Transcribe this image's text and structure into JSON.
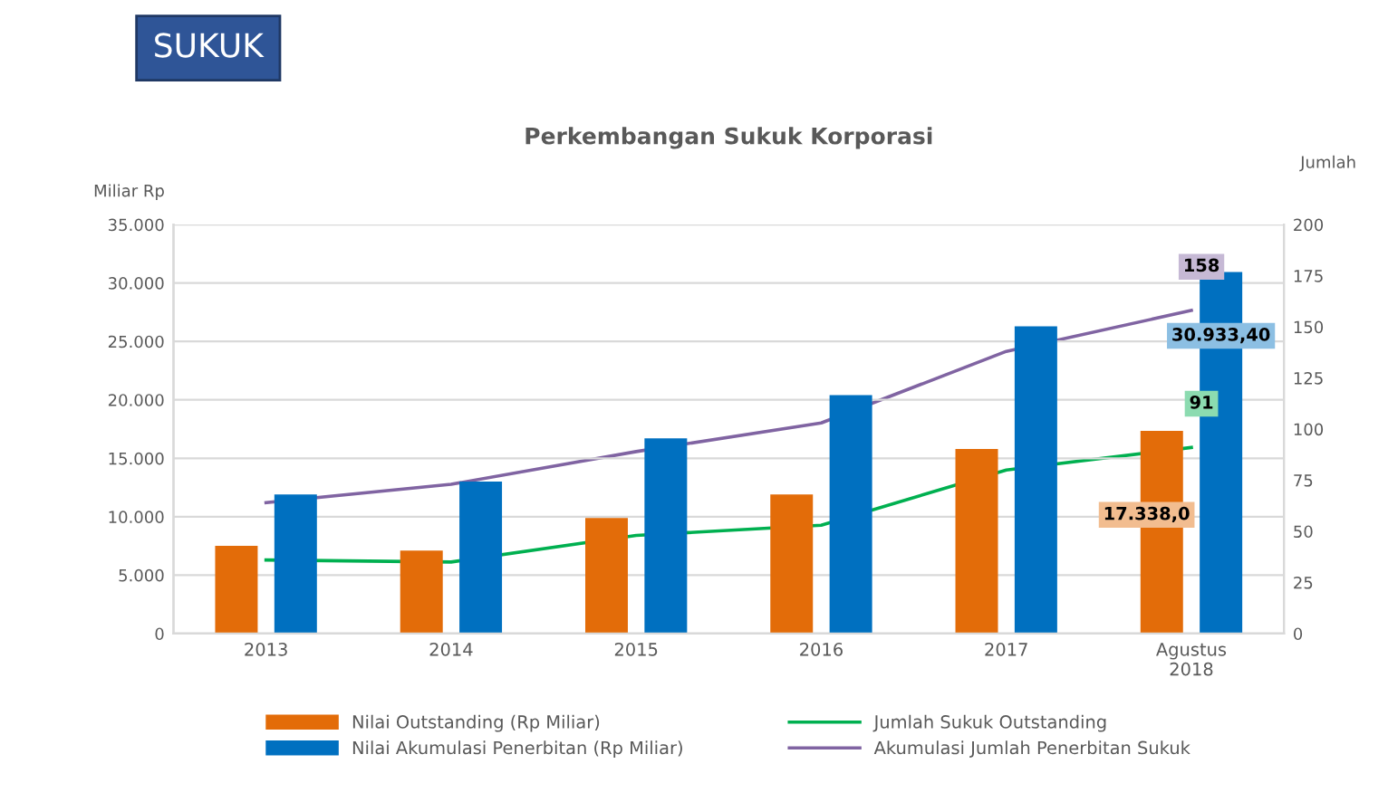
{
  "chart_data": {
    "type": "bar",
    "title": "Perkembangan Sukuk Korporasi",
    "annotations": [
      "SUKUK"
    ],
    "ylabel": "Miliar Rp",
    "y2label": "Jumlah",
    "categories": [
      "2013",
      "2014",
      "2015",
      "2016",
      "2017",
      "Agustus\n2018"
    ],
    "series": [
      {
        "name": "Nilai Outstanding (Rp Miliar)",
        "color": "#e36c09",
        "values": [
          7500,
          7100,
          9900,
          11900,
          15800,
          17338.0
        ],
        "value_labels": [
          null,
          null,
          null,
          null,
          null,
          "17.338,0"
        ]
      },
      {
        "name": "Nilai Akumulasi Penerbitan (Rp Miliar)",
        "color": "#0070c0",
        "values": [
          11900,
          13000,
          16700,
          20400,
          26300,
          30933.4
        ],
        "value_labels": [
          null,
          null,
          null,
          null,
          null,
          "30.933,40"
        ]
      },
      {
        "name": "Jumlah Sukuk Outstanding",
        "type": "line",
        "axis": "y2",
        "color": "#00b050",
        "values": [
          36,
          35,
          48,
          53,
          80,
          91
        ],
        "value_labels": [
          null,
          null,
          null,
          null,
          null,
          "91"
        ]
      },
      {
        "name": "Akumulasi Jumlah Penerbitan Sukuk",
        "type": "line",
        "axis": "y2",
        "color": "#8064a2",
        "values": [
          64,
          73,
          89,
          103,
          138,
          158
        ],
        "value_labels": [
          null,
          null,
          null,
          null,
          null,
          "158"
        ]
      }
    ],
    "ylim": [
      0,
      35000
    ],
    "yticks": [
      {
        "value": 0,
        "label": "0"
      },
      {
        "value": 5000,
        "label": "5.000"
      },
      {
        "value": 10000,
        "label": "10.000"
      },
      {
        "value": 15000,
        "label": "15.000"
      },
      {
        "value": 20000,
        "label": "20.000"
      },
      {
        "value": 25000,
        "label": "25.000"
      },
      {
        "value": 30000,
        "label": "30.000"
      },
      {
        "value": 35000,
        "label": "35.000"
      }
    ],
    "y2lim": [
      0,
      200
    ],
    "y2ticks": [
      0,
      25,
      50,
      75,
      100,
      125,
      150,
      175,
      200
    ],
    "grid": "y",
    "legend": "bottom",
    "marker": "none",
    "line_style": "solid"
  }
}
